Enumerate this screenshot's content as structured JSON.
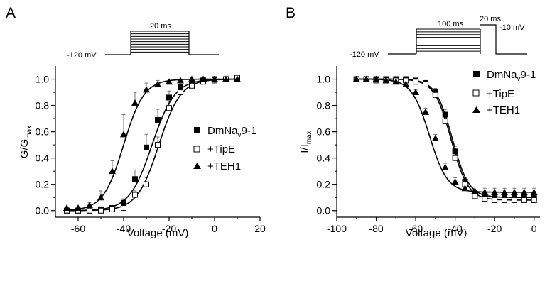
{
  "panels": {
    "a": {
      "letter": "A",
      "protocol": {
        "hold_label": "-120 mV",
        "pulse_label": "20 ms",
        "steps": 9
      }
    },
    "b": {
      "letter": "B",
      "protocol": {
        "hold_label": "-120 mV",
        "pre_label": "100 ms",
        "test_label": "20 ms",
        "test_voltage_label": "-10 mV",
        "steps": 9
      }
    }
  },
  "chart_data": [
    {
      "type": "scatter",
      "panel": "A",
      "xlabel": "Voltage (mV)",
      "ylabel": "G/G",
      "ylabel_sub": "max",
      "xlim": [
        -70,
        20
      ],
      "ylim": [
        -0.05,
        1.1
      ],
      "xticks": [
        -60,
        -40,
        -20,
        0,
        20
      ],
      "yticks": [
        0.0,
        0.2,
        0.4,
        0.6,
        0.8,
        1.0
      ],
      "xtick_labels": [
        "-60",
        "-40",
        "-20",
        "0",
        "20"
      ],
      "ytick_labels": [
        "0.0",
        "0.2",
        "0.4",
        "0.6",
        "0.8",
        "1.0"
      ],
      "legend_position": "right",
      "series": [
        {
          "name": "DmNa",
          "name_sub": "v",
          "name_suffix": "9-1",
          "marker": "filled-square",
          "fit": {
            "v_half": -27.5,
            "k": 5.0
          },
          "x": [
            -65,
            -60,
            -55,
            -50,
            -45,
            -40,
            -35,
            -30,
            -25,
            -20,
            -15,
            -10,
            -5,
            0,
            5,
            10
          ],
          "y": [
            0.0,
            0.0,
            0.0,
            0.01,
            0.02,
            0.06,
            0.24,
            0.48,
            0.69,
            0.86,
            0.94,
            0.97,
            0.99,
            1.0,
            1.0,
            1.0
          ],
          "err": [
            0.0,
            0.0,
            0.0,
            0.01,
            0.01,
            0.03,
            0.07,
            0.1,
            0.08,
            0.05,
            0.03,
            0.02,
            0.01,
            0.01,
            0.01,
            0.01
          ]
        },
        {
          "name": "+TipE",
          "marker": "open-square",
          "fit": {
            "v_half": -24.5,
            "k": 4.8
          },
          "x": [
            -65,
            -60,
            -55,
            -50,
            -45,
            -40,
            -35,
            -30,
            -25,
            -20,
            -15,
            -10,
            -5,
            0,
            5,
            10
          ],
          "y": [
            0.0,
            0.0,
            0.0,
            0.0,
            0.01,
            0.02,
            0.12,
            0.2,
            0.5,
            0.78,
            0.9,
            0.95,
            0.98,
            0.99,
            1.0,
            1.01
          ],
          "err": [
            0.0,
            0.0,
            0.0,
            0.0,
            0.01,
            0.01,
            0.03,
            0.05,
            0.06,
            0.05,
            0.04,
            0.03,
            0.02,
            0.02,
            0.02,
            0.02
          ]
        },
        {
          "name": "+TEH1",
          "marker": "filled-triangle",
          "fit": {
            "v_half": -40.0,
            "k": 4.5
          },
          "x": [
            -65,
            -60,
            -55,
            -50,
            -45,
            -40,
            -35,
            -30,
            -25,
            -20,
            -15,
            -10,
            -5,
            0,
            5,
            10
          ],
          "y": [
            0.02,
            0.02,
            0.04,
            0.1,
            0.3,
            0.58,
            0.82,
            0.92,
            0.96,
            0.98,
            0.99,
            1.0,
            1.0,
            1.0,
            1.0,
            1.0
          ],
          "err": [
            0.01,
            0.01,
            0.02,
            0.05,
            0.08,
            0.15,
            0.08,
            0.05,
            0.03,
            0.02,
            0.01,
            0.01,
            0.01,
            0.01,
            0.01,
            0.01
          ]
        }
      ]
    },
    {
      "type": "scatter",
      "panel": "B",
      "xlabel": "Voltage (mV)",
      "ylabel": "I/I",
      "ylabel_sub": "max",
      "xlim": [
        -100,
        3
      ],
      "ylim": [
        -0.05,
        1.1
      ],
      "xticks": [
        -100,
        -80,
        -60,
        -40,
        -20,
        0
      ],
      "yticks": [
        0.0,
        0.2,
        0.4,
        0.6,
        0.8,
        1.0
      ],
      "xtick_labels": [
        "-100",
        "-80",
        "-60",
        "-40",
        "-20",
        "0"
      ],
      "ytick_labels": [
        "0.0",
        "0.2",
        "0.4",
        "0.6",
        "0.8",
        "1.0"
      ],
      "legend_position": "top-right",
      "series": [
        {
          "name": "DmNa",
          "name_sub": "v",
          "name_suffix": "9-1",
          "marker": "filled-square",
          "fit": {
            "v_half": -41.5,
            "k": 4.2,
            "min": 0.1
          },
          "x": [
            -90,
            -85,
            -80,
            -75,
            -70,
            -65,
            -60,
            -55,
            -50,
            -45,
            -40,
            -35,
            -30,
            -25,
            -20,
            -15,
            -10,
            -5,
            0
          ],
          "y": [
            1.0,
            1.0,
            1.0,
            1.0,
            1.0,
            1.0,
            0.99,
            0.97,
            0.9,
            0.73,
            0.45,
            0.22,
            0.13,
            0.11,
            0.1,
            0.1,
            0.1,
            0.1,
            0.1
          ],
          "err": [
            0.01,
            0.01,
            0.01,
            0.01,
            0.01,
            0.01,
            0.01,
            0.02,
            0.03,
            0.04,
            0.04,
            0.03,
            0.02,
            0.02,
            0.01,
            0.01,
            0.01,
            0.01,
            0.01
          ]
        },
        {
          "name": "+TipE",
          "marker": "open-square",
          "fit": {
            "v_half": -42.0,
            "k": 4.3,
            "min": 0.08
          },
          "x": [
            -90,
            -85,
            -80,
            -75,
            -70,
            -65,
            -60,
            -55,
            -50,
            -45,
            -40,
            -35,
            -30,
            -25,
            -20,
            -15,
            -10,
            -5,
            0
          ],
          "y": [
            1.0,
            1.0,
            0.99,
            0.99,
            0.99,
            0.99,
            0.98,
            0.96,
            0.88,
            0.68,
            0.4,
            0.2,
            0.11,
            0.09,
            0.08,
            0.08,
            0.08,
            0.08,
            0.08
          ],
          "err": [
            0.02,
            0.02,
            0.02,
            0.02,
            0.02,
            0.02,
            0.02,
            0.03,
            0.04,
            0.05,
            0.05,
            0.04,
            0.03,
            0.02,
            0.02,
            0.02,
            0.02,
            0.02,
            0.02
          ]
        },
        {
          "name": "+TEH1",
          "marker": "filled-triangle",
          "fit": {
            "v_half": -53.0,
            "k": 4.5,
            "min": 0.14
          },
          "x": [
            -90,
            -85,
            -80,
            -75,
            -70,
            -65,
            -60,
            -55,
            -50,
            -45,
            -40,
            -35,
            -30,
            -25,
            -20,
            -15,
            -10,
            -5,
            0
          ],
          "y": [
            1.0,
            1.0,
            1.0,
            0.99,
            0.98,
            0.96,
            0.9,
            0.75,
            0.55,
            0.33,
            0.22,
            0.17,
            0.15,
            0.14,
            0.14,
            0.14,
            0.14,
            0.14,
            0.14
          ],
          "err": [
            0.01,
            0.01,
            0.01,
            0.01,
            0.01,
            0.02,
            0.02,
            0.03,
            0.03,
            0.03,
            0.03,
            0.03,
            0.03,
            0.03,
            0.03,
            0.03,
            0.03,
            0.03,
            0.03
          ]
        }
      ]
    }
  ]
}
